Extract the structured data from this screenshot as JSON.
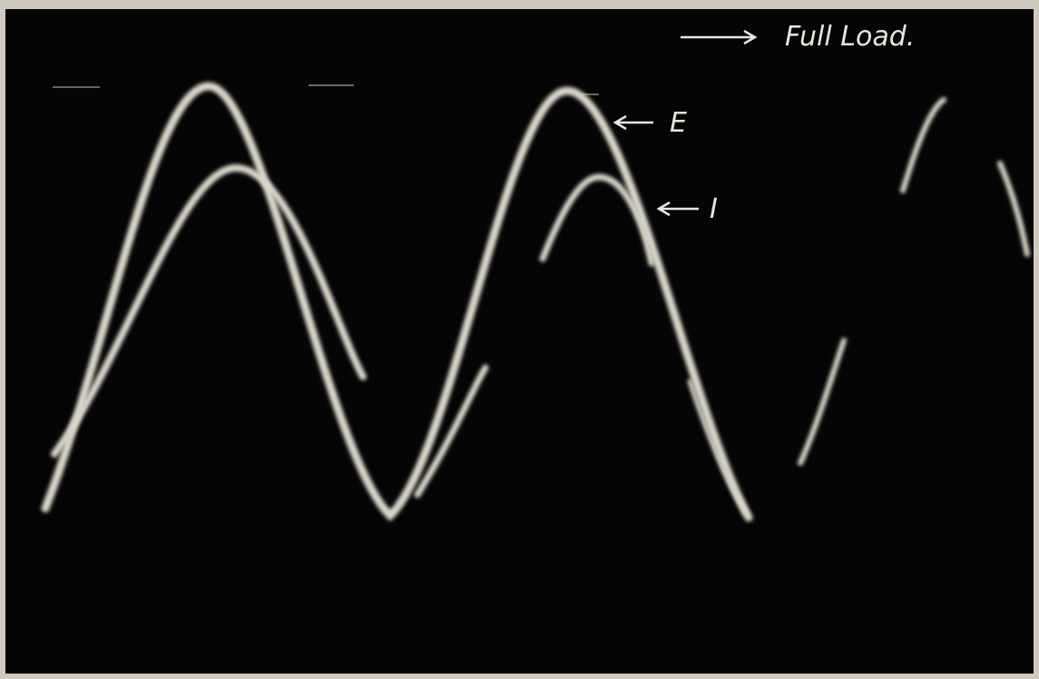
{
  "annotations": {
    "title": "Full Load.",
    "e_label": "E",
    "i_label": "I"
  }
}
